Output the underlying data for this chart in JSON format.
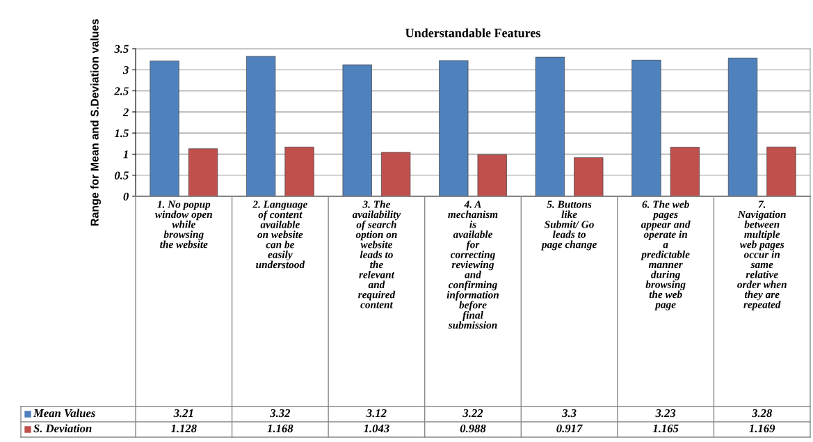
{
  "chart_data": {
    "type": "bar",
    "title": "Understandable Features",
    "ylabel": "Range for Mean and S.Deviation values",
    "categories": [
      "1. No popup window open while browsing the website",
      "2. Language of content available on website can be easily understood",
      "3. The availability of search option on website leads to the relevant and required content",
      "4. A mechanism is available for correcting reviewing and confirming information before final submission",
      "5. Buttons like Submit/ Go leads to page change",
      "6. The web pages appear and operate in a predictable manner during browsing the web page",
      "7. Navigation between multiple web pages occur in same relative order when they are repeated"
    ],
    "series": [
      {
        "name": "Mean Values",
        "color": "#4f81bd",
        "values": [
          3.21,
          3.32,
          3.12,
          3.22,
          3.3,
          3.23,
          3.28
        ]
      },
      {
        "name": "S. Deviation",
        "color": "#c0504d",
        "values": [
          1.128,
          1.168,
          1.043,
          0.988,
          0.917,
          1.165,
          1.169
        ]
      }
    ],
    "ylim": [
      0,
      3.5
    ],
    "yticks": [
      0,
      0.5,
      1,
      1.5,
      2,
      2.5,
      3,
      3.5
    ],
    "grid": "y",
    "legend": "bottom left",
    "data_labels": true
  }
}
